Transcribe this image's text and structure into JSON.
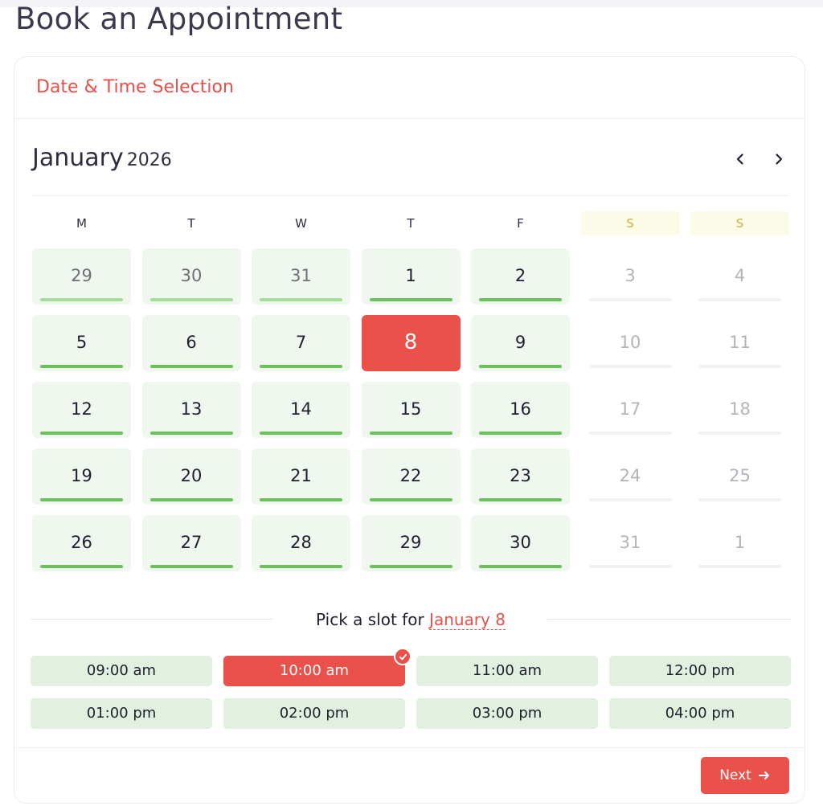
{
  "page": {
    "title": "Book an Appointment"
  },
  "card": {
    "title": "Date & Time Selection"
  },
  "calendar": {
    "month": "January",
    "year": "2026",
    "prev_icon": "chevron-left-icon",
    "next_icon": "chevron-right-icon",
    "weekdays": [
      "M",
      "T",
      "W",
      "T",
      "F",
      "S",
      "S"
    ],
    "weeks": [
      [
        {
          "d": "29",
          "s": "prev"
        },
        {
          "d": "30",
          "s": "prev"
        },
        {
          "d": "31",
          "s": "prev"
        },
        {
          "d": "1",
          "s": "avail"
        },
        {
          "d": "2",
          "s": "avail"
        },
        {
          "d": "3",
          "s": "off"
        },
        {
          "d": "4",
          "s": "off"
        }
      ],
      [
        {
          "d": "5",
          "s": "avail"
        },
        {
          "d": "6",
          "s": "avail"
        },
        {
          "d": "7",
          "s": "avail"
        },
        {
          "d": "8",
          "s": "selected"
        },
        {
          "d": "9",
          "s": "avail"
        },
        {
          "d": "10",
          "s": "off"
        },
        {
          "d": "11",
          "s": "off"
        }
      ],
      [
        {
          "d": "12",
          "s": "avail"
        },
        {
          "d": "13",
          "s": "avail"
        },
        {
          "d": "14",
          "s": "avail"
        },
        {
          "d": "15",
          "s": "avail"
        },
        {
          "d": "16",
          "s": "avail"
        },
        {
          "d": "17",
          "s": "off"
        },
        {
          "d": "18",
          "s": "off"
        }
      ],
      [
        {
          "d": "19",
          "s": "avail"
        },
        {
          "d": "20",
          "s": "avail"
        },
        {
          "d": "21",
          "s": "avail"
        },
        {
          "d": "22",
          "s": "avail"
        },
        {
          "d": "23",
          "s": "avail"
        },
        {
          "d": "24",
          "s": "off"
        },
        {
          "d": "25",
          "s": "off"
        }
      ],
      [
        {
          "d": "26",
          "s": "avail"
        },
        {
          "d": "27",
          "s": "avail"
        },
        {
          "d": "28",
          "s": "avail"
        },
        {
          "d": "29",
          "s": "avail"
        },
        {
          "d": "30",
          "s": "avail"
        },
        {
          "d": "31",
          "s": "off"
        },
        {
          "d": "1",
          "s": "off"
        }
      ]
    ]
  },
  "slots": {
    "title_prefix": "Pick a slot for",
    "selected_date": "January 8",
    "items": [
      "09:00 am",
      "10:00 am",
      "11:00 am",
      "12:00 pm",
      "01:00 pm",
      "02:00 pm",
      "03:00 pm",
      "04:00 pm"
    ],
    "selected_index": 1,
    "check_icon": "check-circle-icon"
  },
  "footer": {
    "next_label": "Next",
    "next_icon": "arrow-right-icon"
  },
  "colors": {
    "accent": "#ea514b",
    "available": "#6cc15d",
    "available_bg": "#eff7ee",
    "slot_bg": "#e2f0df",
    "weekend": "#c8b347"
  }
}
